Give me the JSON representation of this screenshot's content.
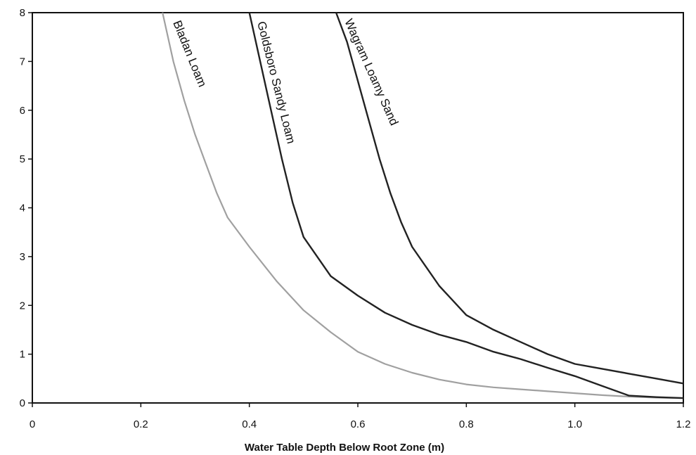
{
  "chart_data": {
    "type": "line",
    "title": "",
    "xlabel": "Water Table Depth Below Root Zone (m)",
    "ylabel": "",
    "xlim": [
      0,
      1.2
    ],
    "ylim": [
      0,
      8
    ],
    "grid": false,
    "legend": "inline labels along curves",
    "x_ticks": [
      "0",
      "0.2",
      "0.4",
      "0.6",
      "0.8",
      "1.0",
      "1.2"
    ],
    "y_ticks": [
      "0",
      "1",
      "2",
      "3",
      "4",
      "5",
      "6",
      "7",
      "8"
    ],
    "series": [
      {
        "name": "Bladan Loam",
        "color": "#a0a0a0",
        "x": [
          0.24,
          0.26,
          0.28,
          0.3,
          0.32,
          0.34,
          0.36,
          0.4,
          0.45,
          0.5,
          0.55,
          0.6,
          0.65,
          0.7,
          0.75,
          0.8,
          0.85,
          0.9,
          0.95,
          1.0,
          1.05,
          1.1,
          1.15,
          1.2
        ],
        "y": [
          8.0,
          7.0,
          6.2,
          5.5,
          4.9,
          4.3,
          3.8,
          3.2,
          2.5,
          1.9,
          1.45,
          1.05,
          0.8,
          0.62,
          0.48,
          0.38,
          0.32,
          0.28,
          0.24,
          0.2,
          0.16,
          0.13,
          0.11,
          0.1
        ]
      },
      {
        "name": "Goldsboro Sandy Loam",
        "color": "#222222",
        "x": [
          0.4,
          0.42,
          0.44,
          0.46,
          0.48,
          0.5,
          0.55,
          0.6,
          0.65,
          0.7,
          0.75,
          0.8,
          0.85,
          0.9,
          0.95,
          1.0,
          1.05,
          1.1,
          1.15,
          1.2
        ],
        "y": [
          8.0,
          7.0,
          6.0,
          5.0,
          4.1,
          3.4,
          2.6,
          2.2,
          1.85,
          1.6,
          1.4,
          1.25,
          1.05,
          0.9,
          0.72,
          0.55,
          0.35,
          0.15,
          0.12,
          0.1
        ]
      },
      {
        "name": "Wagram Loamy Sand",
        "color": "#222222",
        "x": [
          0.56,
          0.58,
          0.6,
          0.62,
          0.64,
          0.66,
          0.68,
          0.7,
          0.75,
          0.8,
          0.85,
          0.9,
          0.95,
          1.0,
          1.05,
          1.1,
          1.15,
          1.2
        ],
        "y": [
          8.0,
          7.4,
          6.6,
          5.8,
          5.0,
          4.3,
          3.7,
          3.2,
          2.4,
          1.8,
          1.5,
          1.25,
          1.0,
          0.8,
          0.7,
          0.6,
          0.5,
          0.4
        ]
      }
    ]
  }
}
